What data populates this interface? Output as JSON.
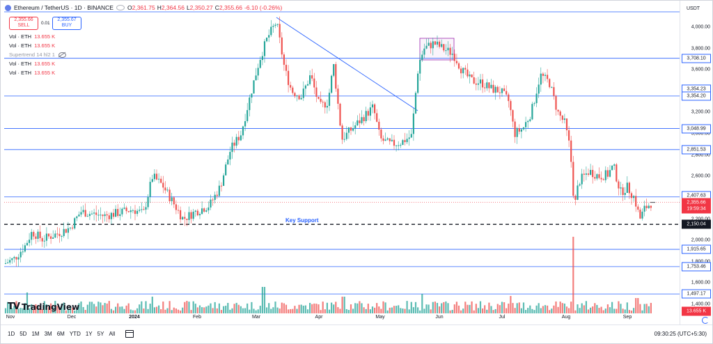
{
  "legend": {
    "symbol": "Ethereum / TetherUS · 1D · BINANCE",
    "ohlc": [
      {
        "label": "O",
        "value": "2,361.75"
      },
      {
        "label": "H",
        "value": "2,364.56"
      },
      {
        "label": "L",
        "value": "2,350.27"
      },
      {
        "label": "C",
        "value": "2,355.66"
      },
      {
        "label": "",
        "value": "-6.10 (-0.26%)"
      }
    ],
    "sell_price": "2,355.66",
    "sell_label": "SELL",
    "spread": "0.01",
    "buy_price": "2,355.67",
    "buy_label": "BUY",
    "indicators": [
      {
        "name": "Vol · ETH",
        "value": "13.655 K",
        "dim": false
      },
      {
        "name": "Vol · ETH",
        "value": "13.655 K",
        "dim": false
      },
      {
        "name": "Supertrend 14 hl2 1",
        "value": "",
        "dim": true
      },
      {
        "name": "Vol · ETH",
        "value": "13.655 K",
        "dim": false
      },
      {
        "name": "Vol · ETH",
        "value": "13.655 K",
        "dim": false
      }
    ]
  },
  "price_axis": {
    "currency": "USDT",
    "ticks": [
      "4,000.00",
      "3,800.00",
      "3,600.00",
      "3,400.00",
      "3,200.00",
      "3,000.00",
      "2,800.00",
      "2,600.00",
      "2,400.00",
      "2,200.00",
      "2,000.00",
      "1,800.00",
      "1,600.00",
      "1,400.00"
    ],
    "tags": [
      {
        "text": "3,708.10",
        "style": "blue"
      },
      {
        "text": "3,354.23",
        "style": "blue"
      },
      {
        "text": "3,354.20",
        "style": "blue"
      },
      {
        "text": "3,048.99",
        "style": "blue"
      },
      {
        "text": "2,851.53",
        "style": "blue"
      },
      {
        "text": "2,407.63",
        "style": "blue"
      },
      {
        "text": "2,355.66",
        "style": "red"
      },
      {
        "text": "19:59:34",
        "style": "red"
      },
      {
        "text": "2,150.04",
        "style": "black"
      },
      {
        "text": "1,915.65",
        "style": "blue"
      },
      {
        "text": "1,753.46",
        "style": "blue"
      },
      {
        "text": "1,497.17",
        "style": "blue"
      },
      {
        "text": "13.655 K",
        "style": "red"
      }
    ]
  },
  "time_axis": {
    "labels": [
      "Nov",
      "Dec",
      "2024",
      "Feb",
      "Mar",
      "Apr",
      "May",
      "Jun",
      "Jul",
      "Aug",
      "Sep"
    ]
  },
  "annotation": {
    "key_support": "Key Support"
  },
  "brand": {
    "name": "TradingView"
  },
  "bottom_bar": {
    "timeframes": [
      "1D",
      "5D",
      "1M",
      "3M",
      "6M",
      "YTD",
      "1Y",
      "5Y",
      "All"
    ],
    "clock": "09:30:25 (UTC+5:30)"
  },
  "colors": {
    "up": "#26a69a",
    "down": "#ef5350",
    "line": "#2962ff",
    "vol_up": "#26a69a",
    "vol_down": "#ef5350"
  },
  "chart_data": {
    "type": "candlestick",
    "symbol": "ETHUSDT",
    "interval": "1D",
    "x": [
      "Nov",
      "Dec",
      "2024",
      "Feb",
      "Mar",
      "Apr",
      "May",
      "Jun",
      "Jul",
      "Aug",
      "Sep"
    ],
    "ylim": [
      1400,
      4100
    ],
    "horizontal_levels": [
      3708.1,
      3354.23,
      3048.99,
      2851.53,
      2407.63,
      2150.04,
      1915.65,
      1753.46,
      1497.17
    ],
    "key_support": 2150.04,
    "last_price": 2355.66,
    "close_path": [
      {
        "date": "Nov",
        "close": 1800
      },
      {
        "date": "mid-Nov",
        "close": 2050
      },
      {
        "date": "Dec",
        "close": 2100
      },
      {
        "date": "mid-Dec",
        "close": 2250
      },
      {
        "date": "2024",
        "close": 2300
      },
      {
        "date": "mid-Jan",
        "close": 2600
      },
      {
        "date": "late-Jan",
        "close": 2250
      },
      {
        "date": "Feb",
        "close": 2300
      },
      {
        "date": "mid-Feb",
        "close": 2800
      },
      {
        "date": "Mar",
        "close": 3400
      },
      {
        "date": "mid-Mar",
        "close": 4050
      },
      {
        "date": "late-Mar",
        "close": 3400
      },
      {
        "date": "Apr",
        "close": 3600
      },
      {
        "date": "mid-Apr",
        "close": 3000
      },
      {
        "date": "May",
        "close": 2950
      },
      {
        "date": "late-May",
        "close": 3750
      },
      {
        "date": "Jun",
        "close": 3800
      },
      {
        "date": "mid-Jun",
        "close": 3500
      },
      {
        "date": "Jul",
        "close": 3300
      },
      {
        "date": "mid-Jul",
        "close": 3050
      },
      {
        "date": "late-Jul",
        "close": 3450
      },
      {
        "date": "Aug",
        "close": 2900
      },
      {
        "date": "mid-Aug",
        "close": 2600
      },
      {
        "date": "late-Aug",
        "close": 2700
      },
      {
        "date": "Sep",
        "close": 2300
      },
      {
        "date": "last",
        "close": 2355.66
      }
    ]
  }
}
